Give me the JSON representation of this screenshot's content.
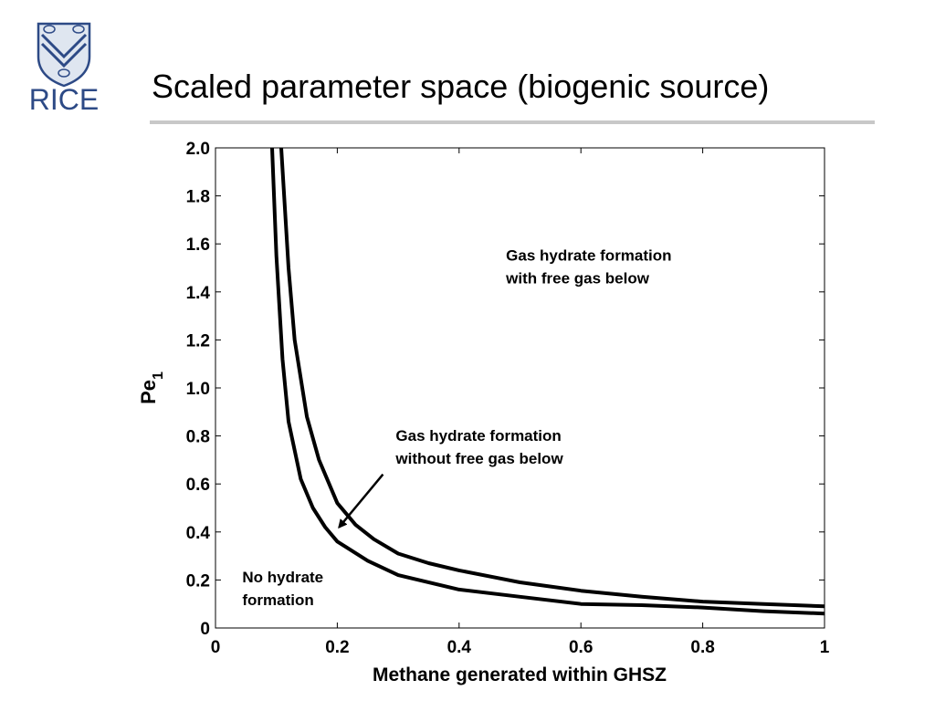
{
  "slide": {
    "title": "Scaled parameter space (biogenic source)",
    "logo_text": "RICE",
    "colors": {
      "logo": "#2d4a86",
      "rule": "#c8c8c8"
    }
  },
  "chart_data": {
    "type": "line",
    "title": "",
    "xlabel": "Methane generated within GHSZ",
    "ylabel_main": "Pe",
    "ylabel_sub": "1",
    "xlim": [
      0,
      1
    ],
    "ylim": [
      0,
      2
    ],
    "x_ticks": [
      0,
      0.2,
      0.4,
      0.6,
      0.8,
      1
    ],
    "x_tick_labels": [
      "0",
      "0.2",
      "0.4",
      "0.6",
      "0.8",
      "1"
    ],
    "y_ticks": [
      0,
      0.2,
      0.4,
      0.6,
      0.8,
      1.0,
      1.2,
      1.4,
      1.6,
      1.8,
      2.0
    ],
    "y_tick_labels": [
      "0",
      "0.2",
      "0.4",
      "0.6",
      "0.8",
      "1.0",
      "1.2",
      "1.4",
      "1.6",
      "1.8",
      "2.0"
    ],
    "grid": false,
    "series": [
      {
        "x": [
          0.093,
          0.1,
          0.11,
          0.12,
          0.14,
          0.16,
          0.18,
          0.2,
          0.25,
          0.3,
          0.4,
          0.5,
          0.6,
          0.7,
          0.8,
          0.9,
          1.0
        ],
        "y": [
          2.0,
          1.55,
          1.12,
          0.86,
          0.62,
          0.5,
          0.42,
          0.36,
          0.28,
          0.22,
          0.16,
          0.13,
          0.1,
          0.095,
          0.085,
          0.07,
          0.06
        ]
      },
      {
        "x": [
          0.108,
          0.12,
          0.13,
          0.15,
          0.17,
          0.2,
          0.23,
          0.26,
          0.3,
          0.35,
          0.4,
          0.5,
          0.6,
          0.7,
          0.8,
          0.9,
          1.0
        ],
        "y": [
          2.0,
          1.5,
          1.2,
          0.88,
          0.7,
          0.52,
          0.43,
          0.37,
          0.31,
          0.27,
          0.24,
          0.19,
          0.155,
          0.13,
          0.11,
          0.1,
          0.09
        ]
      }
    ],
    "annotations": [
      {
        "lines": [
          "Gas hydrate formation",
          "with free gas below"
        ],
        "x": 0.477,
        "y": 1.53
      },
      {
        "lines": [
          "Gas hydrate formation",
          "without free gas below"
        ],
        "x": 0.296,
        "y": 0.78,
        "arrow_to": [
          0.203,
          0.42
        ],
        "arrow_from": [
          0.275,
          0.64
        ]
      },
      {
        "lines": [
          "No hydrate",
          "formation"
        ],
        "x": 0.044,
        "y": 0.19
      }
    ]
  }
}
